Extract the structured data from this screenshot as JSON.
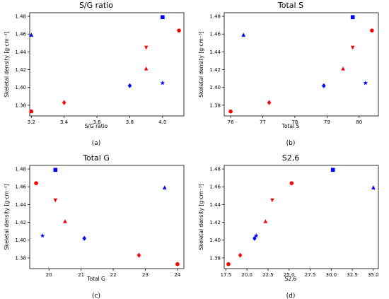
{
  "figure": {
    "colors": {
      "red": "#ff0000",
      "blue": "#0000ff",
      "axis": "#000000"
    }
  },
  "chart_data": [
    {
      "type": "scatter",
      "title": "S/G ratio",
      "xlabel": "S/G ratio",
      "ylabel": "Skeletal density [g·cm⁻³]",
      "caption": "(a)",
      "xlim": [
        3.19,
        4.13
      ],
      "ylim": [
        1.368,
        1.484
      ],
      "xticks": [
        3.2,
        3.4,
        3.6,
        3.8,
        4.0
      ],
      "xtick_labels": [
        "3.2",
        "3.4",
        "3.6",
        "3.8",
        "4.0"
      ],
      "yticks": [
        1.38,
        1.4,
        1.42,
        1.44,
        1.46,
        1.48
      ],
      "ytick_labels": [
        "1.38",
        "1.40",
        "1.42",
        "1.44",
        "1.46",
        "1.48"
      ],
      "grid": false,
      "points": [
        {
          "x": 4.0,
          "y": 1.479,
          "marker": "square",
          "color": "blue"
        },
        {
          "x": 4.1,
          "y": 1.464,
          "marker": "circle",
          "color": "red"
        },
        {
          "x": 3.2,
          "y": 1.459,
          "marker": "triangle",
          "color": "blue"
        },
        {
          "x": 3.9,
          "y": 1.445,
          "marker": "triangle-down",
          "color": "red"
        },
        {
          "x": 3.9,
          "y": 1.421,
          "marker": "triangle",
          "color": "red"
        },
        {
          "x": 4.0,
          "y": 1.405,
          "marker": "star",
          "color": "blue"
        },
        {
          "x": 3.8,
          "y": 1.402,
          "marker": "diamond",
          "color": "blue"
        },
        {
          "x": 3.4,
          "y": 1.383,
          "marker": "diamond",
          "color": "red"
        },
        {
          "x": 3.2,
          "y": 1.373,
          "marker": "circle",
          "color": "red"
        }
      ]
    },
    {
      "type": "scatter",
      "title": "Total S",
      "xlabel": "Total S",
      "ylabel": "Skeletal density [g·cm⁻³]",
      "caption": "(b)",
      "xlim": [
        75.8,
        80.6
      ],
      "ylim": [
        1.368,
        1.484
      ],
      "xticks": [
        76,
        77,
        78,
        79,
        80
      ],
      "xtick_labels": [
        "76",
        "77",
        "78",
        "79",
        "80"
      ],
      "yticks": [
        1.38,
        1.4,
        1.42,
        1.44,
        1.46,
        1.48
      ],
      "ytick_labels": [
        "1.38",
        "1.40",
        "1.42",
        "1.44",
        "1.46",
        "1.48"
      ],
      "grid": false,
      "points": [
        {
          "x": 79.8,
          "y": 1.479,
          "marker": "square",
          "color": "blue"
        },
        {
          "x": 80.4,
          "y": 1.464,
          "marker": "circle",
          "color": "red"
        },
        {
          "x": 76.4,
          "y": 1.459,
          "marker": "triangle",
          "color": "blue"
        },
        {
          "x": 79.8,
          "y": 1.445,
          "marker": "triangle-down",
          "color": "red"
        },
        {
          "x": 79.5,
          "y": 1.421,
          "marker": "triangle",
          "color": "red"
        },
        {
          "x": 80.2,
          "y": 1.405,
          "marker": "star",
          "color": "blue"
        },
        {
          "x": 78.9,
          "y": 1.402,
          "marker": "diamond",
          "color": "blue"
        },
        {
          "x": 77.2,
          "y": 1.383,
          "marker": "diamond",
          "color": "red"
        },
        {
          "x": 76.0,
          "y": 1.373,
          "marker": "circle",
          "color": "red"
        }
      ]
    },
    {
      "type": "scatter",
      "title": "Total G",
      "xlabel": "Total G",
      "ylabel": "Skeletal density [g·cm⁻³]",
      "caption": "(c)",
      "xlim": [
        19.4,
        24.2
      ],
      "ylim": [
        1.368,
        1.484
      ],
      "xticks": [
        20,
        21,
        22,
        23,
        24
      ],
      "xtick_labels": [
        "20",
        "21",
        "22",
        "23",
        "24"
      ],
      "yticks": [
        1.38,
        1.4,
        1.42,
        1.44,
        1.46,
        1.48
      ],
      "ytick_labels": [
        "1.38",
        "1.40",
        "1.42",
        "1.44",
        "1.46",
        "1.48"
      ],
      "grid": false,
      "points": [
        {
          "x": 20.2,
          "y": 1.479,
          "marker": "square",
          "color": "blue"
        },
        {
          "x": 19.6,
          "y": 1.464,
          "marker": "circle",
          "color": "red"
        },
        {
          "x": 23.6,
          "y": 1.459,
          "marker": "triangle",
          "color": "blue"
        },
        {
          "x": 20.2,
          "y": 1.445,
          "marker": "triangle-down",
          "color": "red"
        },
        {
          "x": 20.5,
          "y": 1.421,
          "marker": "triangle",
          "color": "red"
        },
        {
          "x": 19.8,
          "y": 1.405,
          "marker": "star",
          "color": "blue"
        },
        {
          "x": 21.1,
          "y": 1.402,
          "marker": "diamond",
          "color": "blue"
        },
        {
          "x": 22.8,
          "y": 1.383,
          "marker": "diamond",
          "color": "red"
        },
        {
          "x": 24.0,
          "y": 1.373,
          "marker": "circle",
          "color": "red"
        }
      ]
    },
    {
      "type": "scatter",
      "title": "S2,6",
      "xlabel": "S2,6",
      "ylabel": "Skeletal density [g·cm⁻³]",
      "caption": "(d)",
      "xlim": [
        17.3,
        35.6
      ],
      "ylim": [
        1.368,
        1.484
      ],
      "xticks": [
        17.5,
        20.0,
        22.5,
        25.0,
        27.5,
        30.0,
        32.5,
        35.0
      ],
      "xtick_labels": [
        "17.5",
        "20.0",
        "22.5",
        "25.0",
        "27.5",
        "30.0",
        "32.5",
        "35.0"
      ],
      "yticks": [
        1.38,
        1.4,
        1.42,
        1.44,
        1.46,
        1.48
      ],
      "ytick_labels": [
        "1.38",
        "1.40",
        "1.42",
        "1.44",
        "1.46",
        "1.48"
      ],
      "grid": false,
      "points": [
        {
          "x": 30.2,
          "y": 1.479,
          "marker": "square",
          "color": "blue"
        },
        {
          "x": 25.3,
          "y": 1.464,
          "marker": "circle",
          "color": "red"
        },
        {
          "x": 35.0,
          "y": 1.459,
          "marker": "triangle",
          "color": "blue"
        },
        {
          "x": 23.0,
          "y": 1.445,
          "marker": "triangle-down",
          "color": "red"
        },
        {
          "x": 22.2,
          "y": 1.421,
          "marker": "triangle",
          "color": "red"
        },
        {
          "x": 21.1,
          "y": 1.405,
          "marker": "star",
          "color": "blue"
        },
        {
          "x": 20.9,
          "y": 1.402,
          "marker": "diamond",
          "color": "blue"
        },
        {
          "x": 19.2,
          "y": 1.383,
          "marker": "diamond",
          "color": "red"
        },
        {
          "x": 17.8,
          "y": 1.373,
          "marker": "circle",
          "color": "red"
        }
      ]
    }
  ]
}
